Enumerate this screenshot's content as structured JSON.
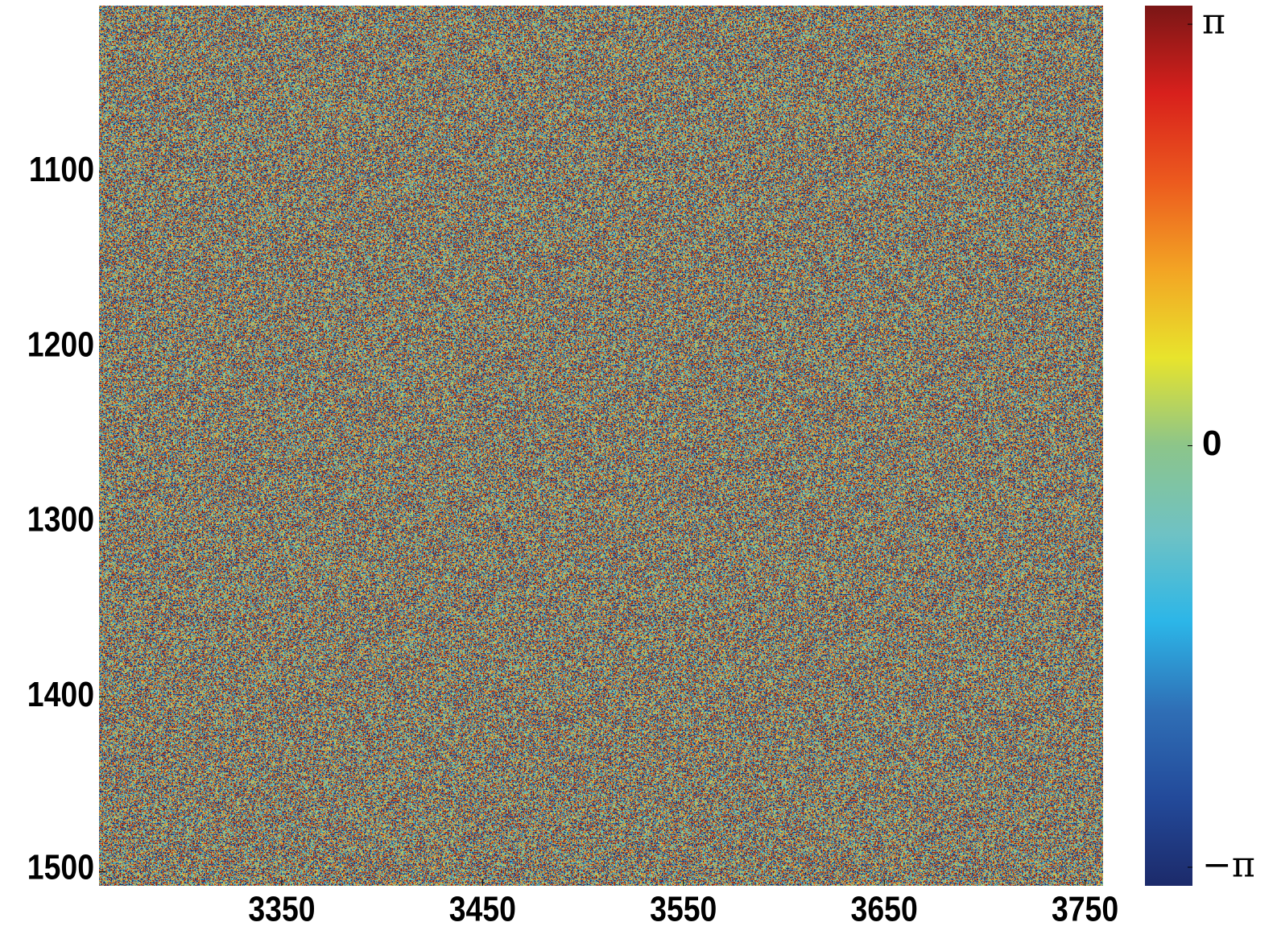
{
  "chart_data": {
    "type": "heatmap",
    "xlim": [
      3259,
      3759
    ],
    "ylim": [
      1005,
      1508
    ],
    "y_reversed": true,
    "xticks": [
      3350,
      3450,
      3550,
      3650,
      3750
    ],
    "yticks": [
      1100,
      1200,
      1300,
      1400,
      1500
    ],
    "colormap": [
      "#1c2a6a",
      "#234a9a",
      "#2f6fb6",
      "#2cb6e8",
      "#6fc2c4",
      "#8cc58a",
      "#e8e42c",
      "#f3a424",
      "#ec5a1e",
      "#d8201c",
      "#7a1616"
    ],
    "colorbar": {
      "lim": [
        -3.28,
        3.28
      ],
      "ticks": [
        {
          "value": -3.1416,
          "label": "−π"
        },
        0,
        {
          "value": 3.1416,
          "label": "π"
        }
      ]
    }
  }
}
